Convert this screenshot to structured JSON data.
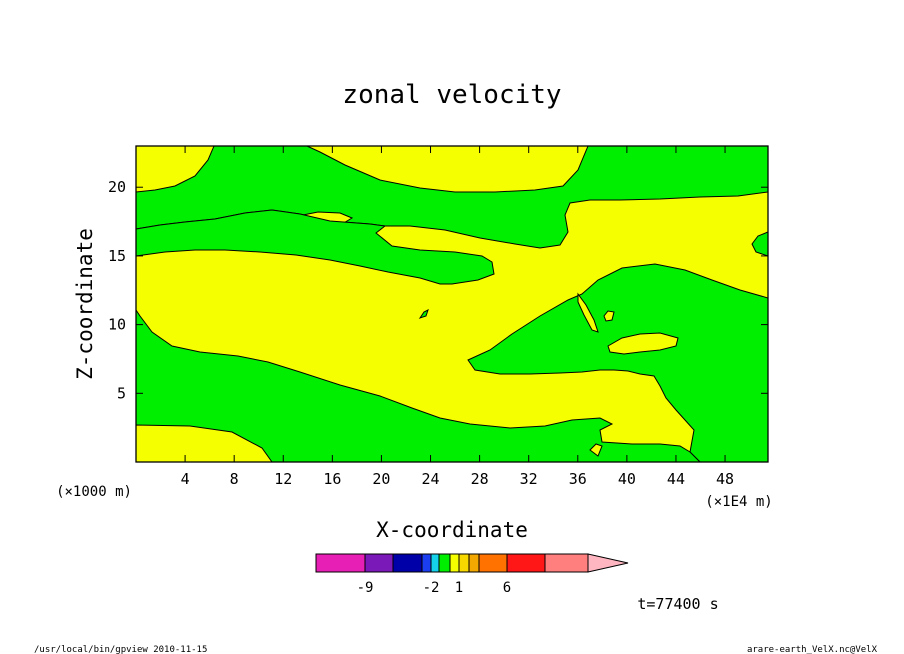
{
  "chart_data": {
    "type": "heatmap",
    "title": "zonal velocity",
    "xlabel": "X-coordinate",
    "ylabel": "Z-coordinate",
    "x_unit_label": "(×1E4 m)",
    "y_unit_label": "(×1000 m)",
    "xlim": [
      0,
      51.5
    ],
    "ylim": [
      0,
      23
    ],
    "x_ticks": [
      4,
      8,
      12,
      16,
      20,
      24,
      28,
      32,
      36,
      40,
      44,
      48
    ],
    "y_ticks": [
      5,
      10,
      15,
      20
    ],
    "contour_fill_colors": {
      "positive_0_to_1": "#f5ff00",
      "negative_-1_to_0": "#00ee00"
    },
    "colorbar": {
      "segments": [
        {
          "color": "#e81fb5"
        },
        {
          "color": "#7a19b8"
        },
        {
          "color": "#0000a8"
        },
        {
          "color": "#1b3ff0"
        },
        {
          "color": "#15d2ea"
        },
        {
          "color": "#00ee00"
        },
        {
          "color": "#f5ff00"
        },
        {
          "color": "#f7d900"
        },
        {
          "color": "#f2a800"
        },
        {
          "color": "#ff7200"
        },
        {
          "color": "#ff1616"
        },
        {
          "color": "#ff7f7f"
        },
        {
          "color": "#ffb6c1"
        }
      ],
      "tick_labels": [
        "-9",
        "-2",
        "1",
        "6"
      ]
    },
    "time_label": "t=77400 s",
    "footer_left": "/usr/local/bin/gpview  2010-11-15",
    "footer_right": "arare-earth_VelX.nc@VelX"
  }
}
